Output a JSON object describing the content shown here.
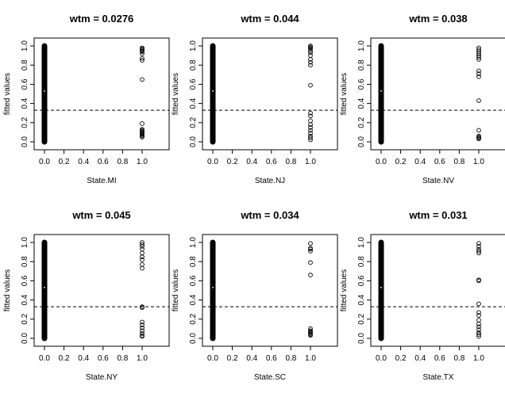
{
  "chart_data": [
    {
      "type": "scatter",
      "title": "wtm =  0.0276",
      "xlabel": "State.MI",
      "ylabel": "fitted values",
      "xlim": [
        0,
        1
      ],
      "ylim": [
        0,
        1
      ],
      "x_ticks": [
        "0.0",
        "0.2",
        "0.4",
        "0.6",
        "0.8",
        "1.0"
      ],
      "y_ticks": [
        "0.0",
        "0.2",
        "0.4",
        "0.6",
        "0.8",
        "1.0"
      ],
      "hline": {
        "y": 0.33,
        "style": "dashed"
      },
      "at_x1": [
        0.98,
        0.97,
        0.96,
        0.95,
        0.94,
        0.92,
        0.87,
        0.85,
        0.65,
        0.19,
        0.13,
        0.12,
        0.11,
        0.1,
        0.09,
        0.08,
        0.07,
        0.06,
        0.05
      ],
      "at_x0": {
        "range": [
          0.0,
          1.0
        ],
        "white_mark": 0.53
      }
    },
    {
      "type": "scatter",
      "title": "wtm =  0.044",
      "xlabel": "State.NJ",
      "ylabel": "fitted values",
      "xlim": [
        0,
        1
      ],
      "ylim": [
        0,
        1
      ],
      "x_ticks": [
        "0.0",
        "0.2",
        "0.4",
        "0.6",
        "0.8",
        "1.0"
      ],
      "y_ticks": [
        "0.0",
        "0.2",
        "0.4",
        "0.6",
        "0.8",
        "1.0"
      ],
      "hline": {
        "y": 0.33,
        "style": "dashed"
      },
      "at_x1": [
        1.0,
        0.99,
        0.98,
        0.97,
        0.95,
        0.93,
        0.9,
        0.86,
        0.83,
        0.8,
        0.59,
        0.3,
        0.27,
        0.22,
        0.18,
        0.15,
        0.12,
        0.09,
        0.06,
        0.04,
        0.02
      ],
      "at_x0": {
        "range": [
          0.0,
          1.0
        ],
        "white_mark": 0.53
      }
    },
    {
      "type": "scatter",
      "title": "wtm =  0.038",
      "xlabel": "State.NV",
      "ylabel": "fitted values",
      "xlim": [
        0,
        1
      ],
      "ylim": [
        0,
        1
      ],
      "x_ticks": [
        "0.0",
        "0.2",
        "0.4",
        "0.6",
        "0.8",
        "1.0"
      ],
      "y_ticks": [
        "0.0",
        "0.2",
        "0.4",
        "0.6",
        "0.8",
        "1.0"
      ],
      "hline": {
        "y": 0.33,
        "style": "dashed"
      },
      "at_x1": [
        0.98,
        0.96,
        0.94,
        0.92,
        0.9,
        0.88,
        0.86,
        0.74,
        0.71,
        0.68,
        0.43,
        0.12,
        0.06,
        0.05,
        0.04,
        0.03
      ],
      "at_x0": {
        "range": [
          0.0,
          1.0
        ],
        "white_mark": 0.53
      }
    },
    {
      "type": "scatter",
      "title": "wtm =  0.045",
      "xlabel": "State.NY",
      "ylabel": "fitted values",
      "xlim": [
        0,
        1
      ],
      "ylim": [
        0,
        1
      ],
      "x_ticks": [
        "0.0",
        "0.2",
        "0.4",
        "0.6",
        "0.8",
        "1.0"
      ],
      "y_ticks": [
        "0.0",
        "0.2",
        "0.4",
        "0.6",
        "0.8",
        "1.0"
      ],
      "hline": {
        "y": 0.33,
        "style": "dashed"
      },
      "at_x1": [
        1.0,
        0.98,
        0.96,
        0.93,
        0.89,
        0.85,
        0.82,
        0.77,
        0.73,
        0.33,
        0.32,
        0.17,
        0.14,
        0.11,
        0.08,
        0.05,
        0.03,
        0.02
      ],
      "at_x0": {
        "range": [
          0.0,
          1.0
        ],
        "white_mark": 0.53
      }
    },
    {
      "type": "scatter",
      "title": "wtm =  0.034",
      "xlabel": "State.SC",
      "ylabel": "fitted values",
      "xlim": [
        0,
        1
      ],
      "ylim": [
        0,
        1
      ],
      "x_ticks": [
        "0.0",
        "0.2",
        "0.4",
        "0.6",
        "0.8",
        "1.0"
      ],
      "y_ticks": [
        "0.0",
        "0.2",
        "0.4",
        "0.6",
        "0.8",
        "1.0"
      ],
      "hline": {
        "y": 0.33,
        "style": "dashed"
      },
      "at_x1": [
        0.99,
        0.94,
        0.93,
        0.91,
        0.79,
        0.66,
        0.1,
        0.08,
        0.07,
        0.06,
        0.05,
        0.04,
        0.03
      ],
      "at_x0": {
        "range": [
          0.0,
          1.0
        ],
        "white_mark": 0.53
      }
    },
    {
      "type": "scatter",
      "title": "wtm =  0.031",
      "xlabel": "State.TX",
      "ylabel": "fitted values",
      "xlim": [
        0,
        1
      ],
      "ylim": [
        0,
        1
      ],
      "x_ticks": [
        "0.0",
        "0.2",
        "0.4",
        "0.6",
        "0.8",
        "1.0"
      ],
      "y_ticks": [
        "0.0",
        "0.2",
        "0.4",
        "0.6",
        "0.8",
        "1.0"
      ],
      "hline": {
        "y": 0.33,
        "style": "dashed"
      },
      "at_x1": [
        0.99,
        0.96,
        0.93,
        0.91,
        0.89,
        0.61,
        0.6,
        0.36,
        0.27,
        0.24,
        0.19,
        0.15,
        0.12,
        0.09,
        0.06,
        0.04,
        0.02
      ],
      "at_x0": {
        "range": [
          0.0,
          1.0
        ],
        "white_mark": 0.53
      }
    }
  ]
}
